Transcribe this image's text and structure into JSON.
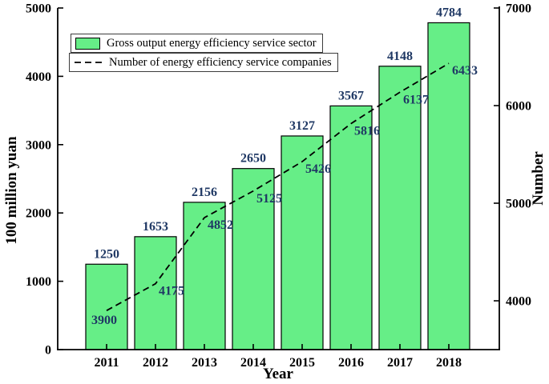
{
  "figure": {
    "background": "#ffffff",
    "axis_color": "#000000",
    "tick_label_color": "#000000",
    "value_label_color": "#1F3864"
  },
  "legend": {
    "items": [
      {
        "label": "Gross output energy efficiency service sector",
        "swatch": "bar-swatch",
        "color": "#66EE87"
      },
      {
        "label": "Number of energy efficiency service companies",
        "swatch": "dashed-line-swatch",
        "color": "#000000"
      }
    ]
  },
  "chart_data": {
    "type": "bar",
    "categories": [
      "2011",
      "2012",
      "2013",
      "2014",
      "2015",
      "2016",
      "2017",
      "2018"
    ],
    "series": [
      {
        "name": "Gross output energy efficiency service sector",
        "type": "bar",
        "axis": "left",
        "color": "#66EE87",
        "values": [
          1250,
          1653,
          2156,
          2650,
          3127,
          3567,
          4148,
          4784
        ]
      },
      {
        "name": "Number of energy efficiency service companies",
        "type": "line",
        "style": "dashed",
        "axis": "right",
        "color": "#000000",
        "values": [
          3900,
          4175,
          4852,
          5125,
          5426,
          5816,
          6137,
          6433
        ]
      }
    ],
    "title": "",
    "xlabel": "Year",
    "ylabel_left": "100 million yuan",
    "ylabel_right": "Number",
    "ylim_left": [
      0,
      5000
    ],
    "yticks_left": [
      0,
      1000,
      2000,
      3000,
      4000,
      5000
    ],
    "ylim_right": [
      3500,
      7000
    ],
    "yticks_right": [
      4000,
      5000,
      6000,
      7000
    ],
    "grid": false,
    "legend_position": "upper-left"
  }
}
